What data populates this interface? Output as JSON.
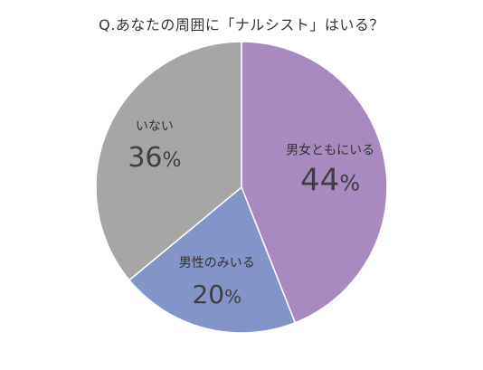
{
  "chart_data": {
    "type": "pie",
    "title": "Q.あなたの周囲に「ナルシスト」はいる？",
    "categories": [
      "男女ともにいる",
      "男性のみいる",
      "いない"
    ],
    "values": [
      44,
      20,
      36
    ],
    "value_labels": [
      "44",
      "20",
      "36"
    ],
    "unit": "%",
    "colors": [
      "#a98ac0",
      "#8395c8",
      "#a6a6a6"
    ],
    "start_angle": "12 o'clock",
    "direction": "clockwise",
    "legend": "none"
  }
}
